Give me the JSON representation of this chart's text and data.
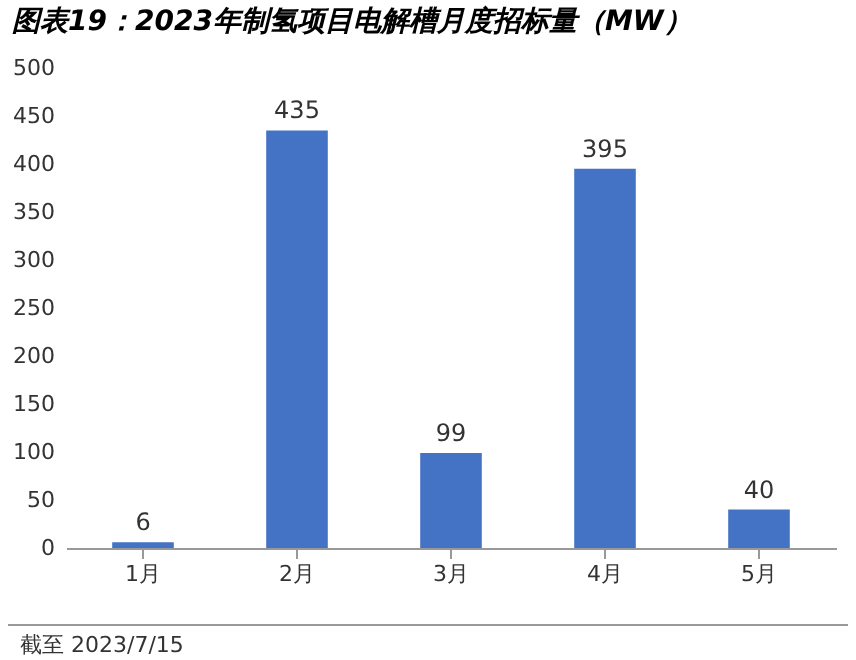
{
  "chart_data": {
    "type": "bar",
    "title": "图表19：2023年制氢项目电解槽月度招标量（MW）",
    "categories": [
      "1月",
      "2月",
      "3月",
      "4月",
      "5月"
    ],
    "values": [
      6,
      435,
      99,
      395,
      40
    ],
    "color": "#4472c4",
    "ylim": [
      0,
      500
    ],
    "yticks": [
      0,
      50,
      100,
      150,
      200,
      250,
      300,
      350,
      400,
      450,
      500
    ],
    "grid": false,
    "data_labels": true,
    "annotations": [
      "截至 2023/7/15"
    ]
  }
}
